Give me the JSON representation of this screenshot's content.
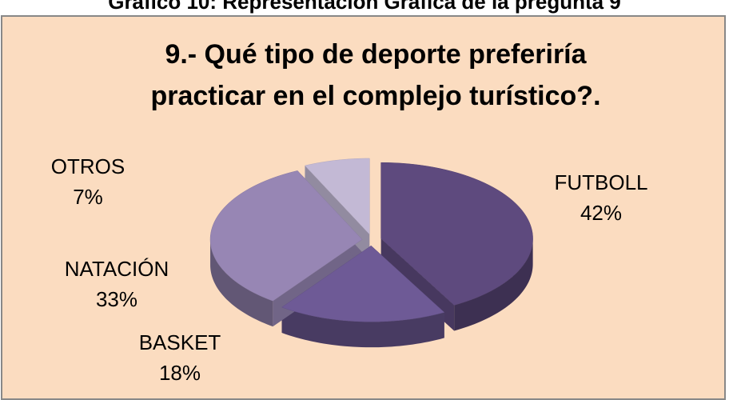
{
  "caption": "Gráfico 10: Representación Gráfica de la pregunta 9",
  "chart_data": {
    "type": "pie3d",
    "title": [
      "9.-  Qué tipo de deporte preferiría",
      "practicar en el complejo turístico?."
    ],
    "categories": [
      "FUTBOLL",
      "BASKET",
      "NATACIÓN",
      "OTROS"
    ],
    "values": [
      42,
      18,
      33,
      7
    ],
    "value_labels": [
      "42%",
      "18%",
      "33%",
      "7%"
    ],
    "colors": [
      "#5e4a7e",
      "#6e5a96",
      "#9786b4",
      "#c3b9d5"
    ],
    "background": "#fbdcc0"
  }
}
